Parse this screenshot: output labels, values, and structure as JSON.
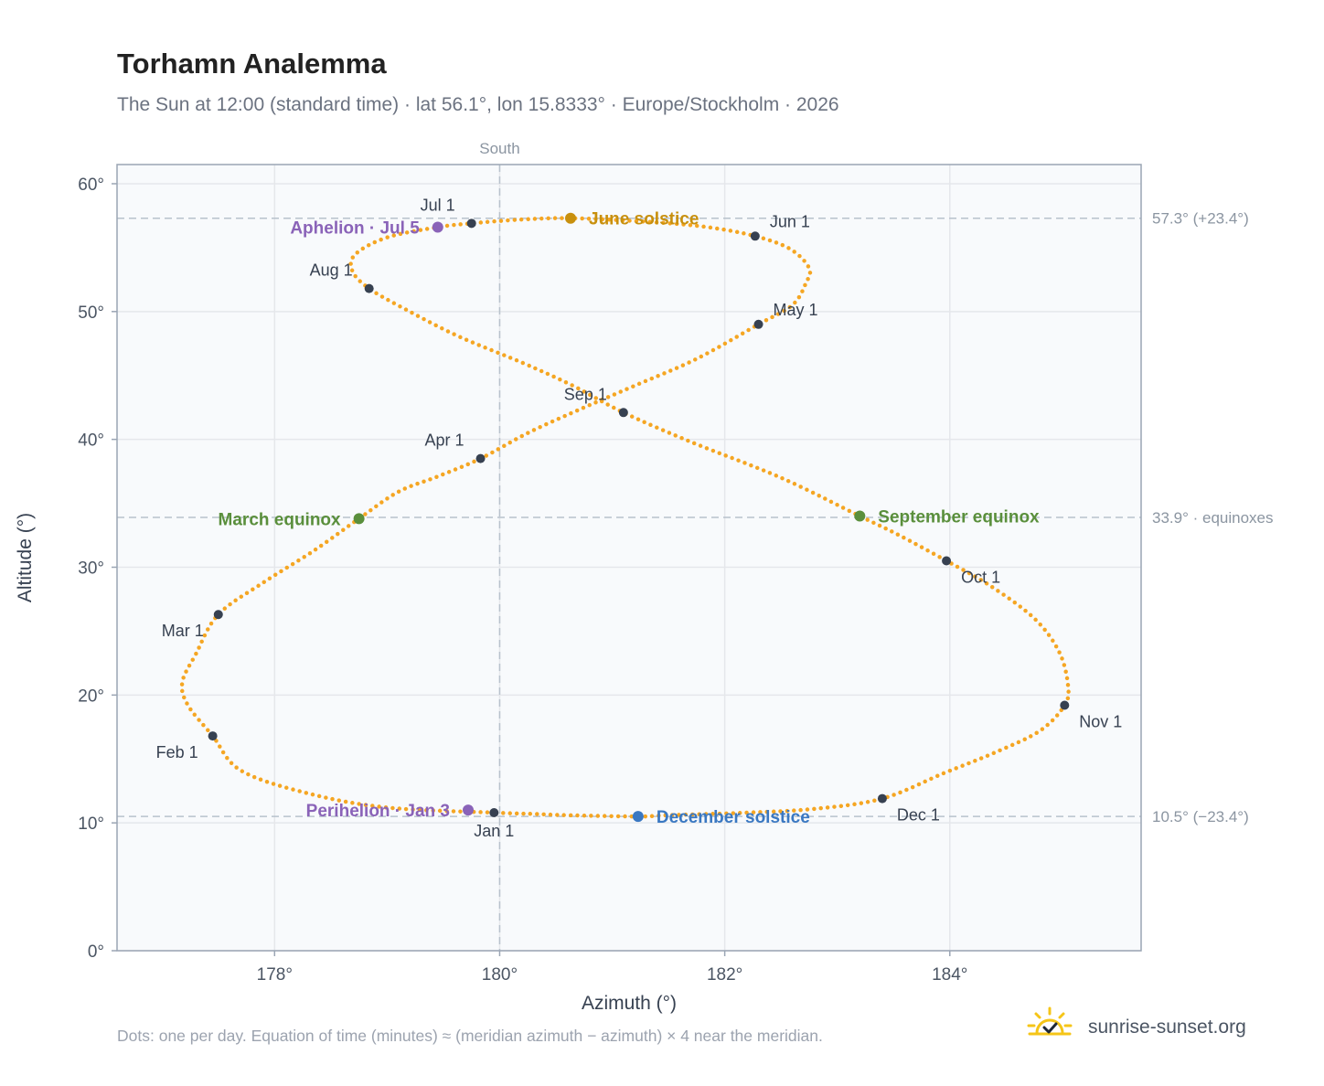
{
  "header": {
    "title": "Torhamn Analemma",
    "subtitle": "The Sun at 12:00 (standard time) · lat 56.1°, lon 15.8333° · Europe/Stockholm · 2026"
  },
  "footer": {
    "note": "Dots: one per day. Equation of time (minutes) ≈ (meridian azimuth − azimuth) × 4 near the meridian.",
    "brand": "sunrise-sunset.org",
    "brand_icon": "sun-logo-icon"
  },
  "colors": {
    "path": "#f5a623",
    "month_marker": "#374151",
    "equinox": "#5a8f3c",
    "june_solstice": "#c8900e",
    "december_solstice": "#3a78c2",
    "aphelion_perihelion": "#8a63b8",
    "plot_background": "#f8fafc",
    "grid": "#e5e7eb"
  },
  "chart_data": {
    "type": "scatter",
    "xlabel": "Azimuth (°)",
    "ylabel": "Altitude (°)",
    "xlim": [
      176.6,
      185.7
    ],
    "ylim": [
      0,
      61.5
    ],
    "grid": true,
    "x_ticks": [
      {
        "value": 178,
        "label": "178°"
      },
      {
        "value": 180,
        "label": "180°"
      },
      {
        "value": 182,
        "label": "182°"
      },
      {
        "value": 184,
        "label": "184°"
      }
    ],
    "y_ticks": [
      {
        "value": 0,
        "label": "0°"
      },
      {
        "value": 10,
        "label": "10°"
      },
      {
        "value": 20,
        "label": "20°"
      },
      {
        "value": 30,
        "label": "30°"
      },
      {
        "value": 40,
        "label": "40°"
      },
      {
        "value": 50,
        "label": "50°"
      },
      {
        "value": 60,
        "label": "60°"
      }
    ],
    "vertical_reference": {
      "x": 180,
      "label": "South"
    },
    "horizontal_references": [
      {
        "y": 57.3,
        "label": "57.3° (+23.4°)"
      },
      {
        "y": 33.9,
        "label": "33.9° · equinoxes"
      },
      {
        "y": 10.5,
        "label": "10.5° (−23.4°)"
      }
    ],
    "analemma_path": [
      [
        179.95,
        10.8
      ],
      [
        179.0,
        11.2
      ],
      [
        178.3,
        12.3
      ],
      [
        177.7,
        14.1
      ],
      [
        177.45,
        16.8
      ],
      [
        177.23,
        19.2
      ],
      [
        177.18,
        21.0
      ],
      [
        177.3,
        23.2
      ],
      [
        177.5,
        26.3
      ],
      [
        177.9,
        28.8
      ],
      [
        178.35,
        31.3
      ],
      [
        178.75,
        33.8
      ],
      [
        179.1,
        35.9
      ],
      [
        179.45,
        37.1
      ],
      [
        179.83,
        38.5
      ],
      [
        180.25,
        40.5
      ],
      [
        180.7,
        42.3
      ],
      [
        181.2,
        44.2
      ],
      [
        181.75,
        46.3
      ],
      [
        182.3,
        49.0
      ],
      [
        182.6,
        50.5
      ],
      [
        182.72,
        52.2
      ],
      [
        182.75,
        53.4
      ],
      [
        182.58,
        54.9
      ],
      [
        182.27,
        55.9
      ],
      [
        181.85,
        56.6
      ],
      [
        181.35,
        57.0
      ],
      [
        180.65,
        57.3
      ],
      [
        180.2,
        57.2
      ],
      [
        179.75,
        56.9
      ],
      [
        179.45,
        56.6
      ],
      [
        179.0,
        55.8
      ],
      [
        178.72,
        54.5
      ],
      [
        178.69,
        53.2
      ],
      [
        178.84,
        51.8
      ],
      [
        179.2,
        50.0
      ],
      [
        179.65,
        48.0
      ],
      [
        180.2,
        46.0
      ],
      [
        180.65,
        44.2
      ],
      [
        181.1,
        42.1
      ],
      [
        181.7,
        39.8
      ],
      [
        182.5,
        37.0
      ],
      [
        183.2,
        34.0
      ],
      [
        183.55,
        32.5
      ],
      [
        183.97,
        30.5
      ],
      [
        184.35,
        28.6
      ],
      [
        184.75,
        26.0
      ],
      [
        184.97,
        23.4
      ],
      [
        185.05,
        20.8
      ],
      [
        185.02,
        19.2
      ],
      [
        184.8,
        17.2
      ],
      [
        184.4,
        15.5
      ],
      [
        183.95,
        13.9
      ],
      [
        183.4,
        11.9
      ],
      [
        182.8,
        11.1
      ],
      [
        182.2,
        10.8
      ],
      [
        181.5,
        10.6
      ],
      [
        181.23,
        10.5
      ],
      [
        180.6,
        10.6
      ],
      [
        180.3,
        10.7
      ],
      [
        179.95,
        10.8
      ]
    ],
    "month_markers": [
      {
        "label": "Jan 1",
        "x": 179.95,
        "y": 10.8,
        "anchor": "below"
      },
      {
        "label": "Feb 1",
        "x": 177.45,
        "y": 16.8,
        "anchor": "below-left"
      },
      {
        "label": "Mar 1",
        "x": 177.5,
        "y": 26.3,
        "anchor": "below-left"
      },
      {
        "label": "Apr 1",
        "x": 179.83,
        "y": 38.5,
        "anchor": "above-left"
      },
      {
        "label": "May 1",
        "x": 182.3,
        "y": 49.0,
        "anchor": "above-right"
      },
      {
        "label": "Jun 1",
        "x": 182.27,
        "y": 55.9,
        "anchor": "above-right"
      },
      {
        "label": "Jul 1",
        "x": 179.75,
        "y": 56.9,
        "anchor": "above-left"
      },
      {
        "label": "Aug 1",
        "x": 178.84,
        "y": 51.8,
        "anchor": "above-left"
      },
      {
        "label": "Sep 1",
        "x": 181.1,
        "y": 42.1,
        "anchor": "above-left"
      },
      {
        "label": "Oct 1",
        "x": 183.97,
        "y": 30.5,
        "anchor": "below-right"
      },
      {
        "label": "Nov 1",
        "x": 185.02,
        "y": 19.2,
        "anchor": "below-right"
      },
      {
        "label": "Dec 1",
        "x": 183.4,
        "y": 11.9,
        "anchor": "below-right"
      }
    ],
    "events": [
      {
        "label": "June solstice",
        "x": 180.63,
        "y": 57.3,
        "color": "#c8900e",
        "side": "right"
      },
      {
        "label": "Aphelion · Jul 5",
        "x": 179.45,
        "y": 56.6,
        "color": "#8a63b8",
        "side": "left"
      },
      {
        "label": "March equinox",
        "x": 178.75,
        "y": 33.8,
        "color": "#5a8f3c",
        "side": "left"
      },
      {
        "label": "September equinox",
        "x": 183.2,
        "y": 34.0,
        "color": "#5a8f3c",
        "side": "right"
      },
      {
        "label": "Perihelion · Jan 3",
        "x": 179.72,
        "y": 11.0,
        "color": "#8a63b8",
        "side": "left"
      },
      {
        "label": "December solstice",
        "x": 181.23,
        "y": 10.5,
        "color": "#3a78c2",
        "side": "right"
      }
    ]
  }
}
